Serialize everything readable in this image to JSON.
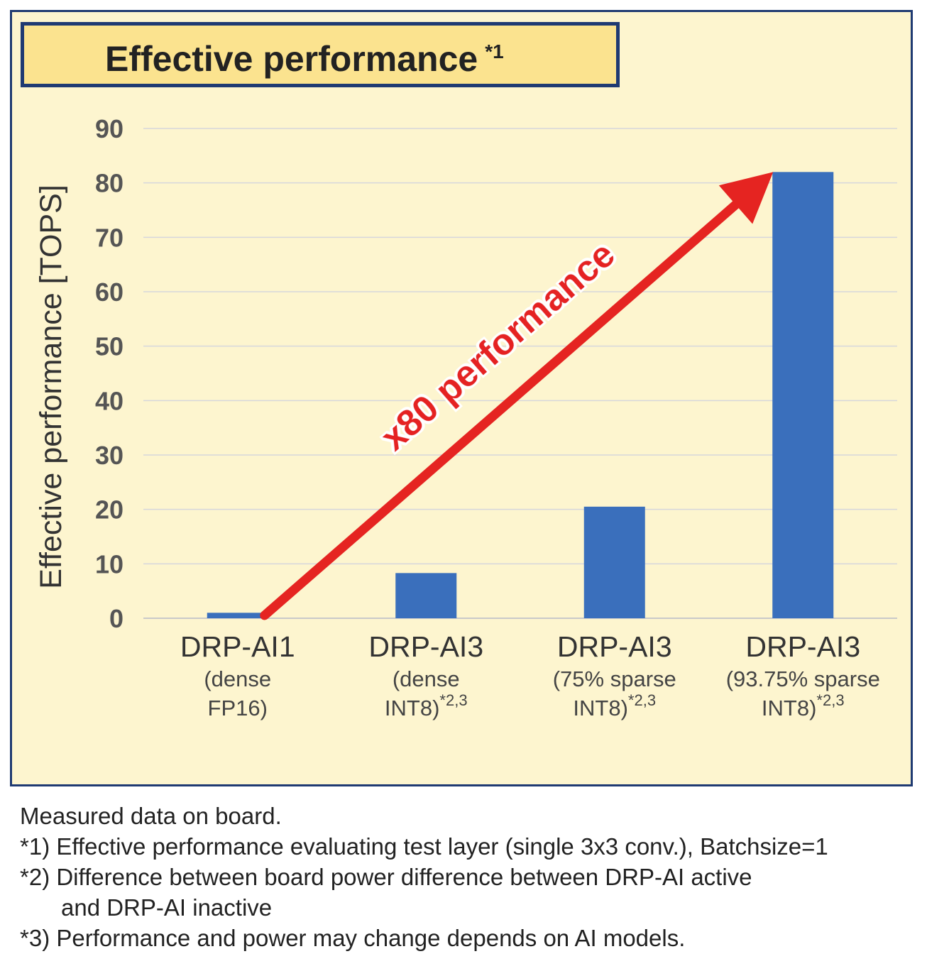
{
  "title": {
    "text": "Effective performance",
    "note": "*1"
  },
  "chart_data": {
    "type": "bar",
    "categories": [
      {
        "name": "DRP-AI1",
        "sub1": "(dense",
        "sub2": "FP16)",
        "note": ""
      },
      {
        "name": "DRP-AI3",
        "sub1": "(dense",
        "sub2": "INT8)",
        "note": "*2,3"
      },
      {
        "name": "DRP-AI3",
        "sub1": "(75% sparse",
        "sub2": "INT8)",
        "note": "*2,3"
      },
      {
        "name": "DRP-AI3",
        "sub1": "(93.75% sparse",
        "sub2": "INT8)",
        "note": "*2,3"
      }
    ],
    "values": [
      1,
      8.3,
      20.5,
      82
    ],
    "ylabel": "Effective  performance [TOPS]",
    "ylim": [
      0,
      90
    ],
    "yticks": [
      0,
      10,
      20,
      30,
      40,
      50,
      60,
      70,
      80,
      90
    ],
    "grid": true,
    "bar_color": "#3a6fbc",
    "annotation": {
      "text": "x80 performance",
      "color": "#e52421",
      "from_category": 0,
      "to_category": 3
    }
  },
  "notes": {
    "measured": "Measured data on board.",
    "n1": "*1) Effective performance evaluating test layer (single 3x3 conv.),   Batchsize=1",
    "n2a": "*2) Difference between board power difference between DRP-AI active",
    "n2b": "and DRP-AI inactive",
    "n3": "*3) Performance and power may change depends on AI models."
  }
}
